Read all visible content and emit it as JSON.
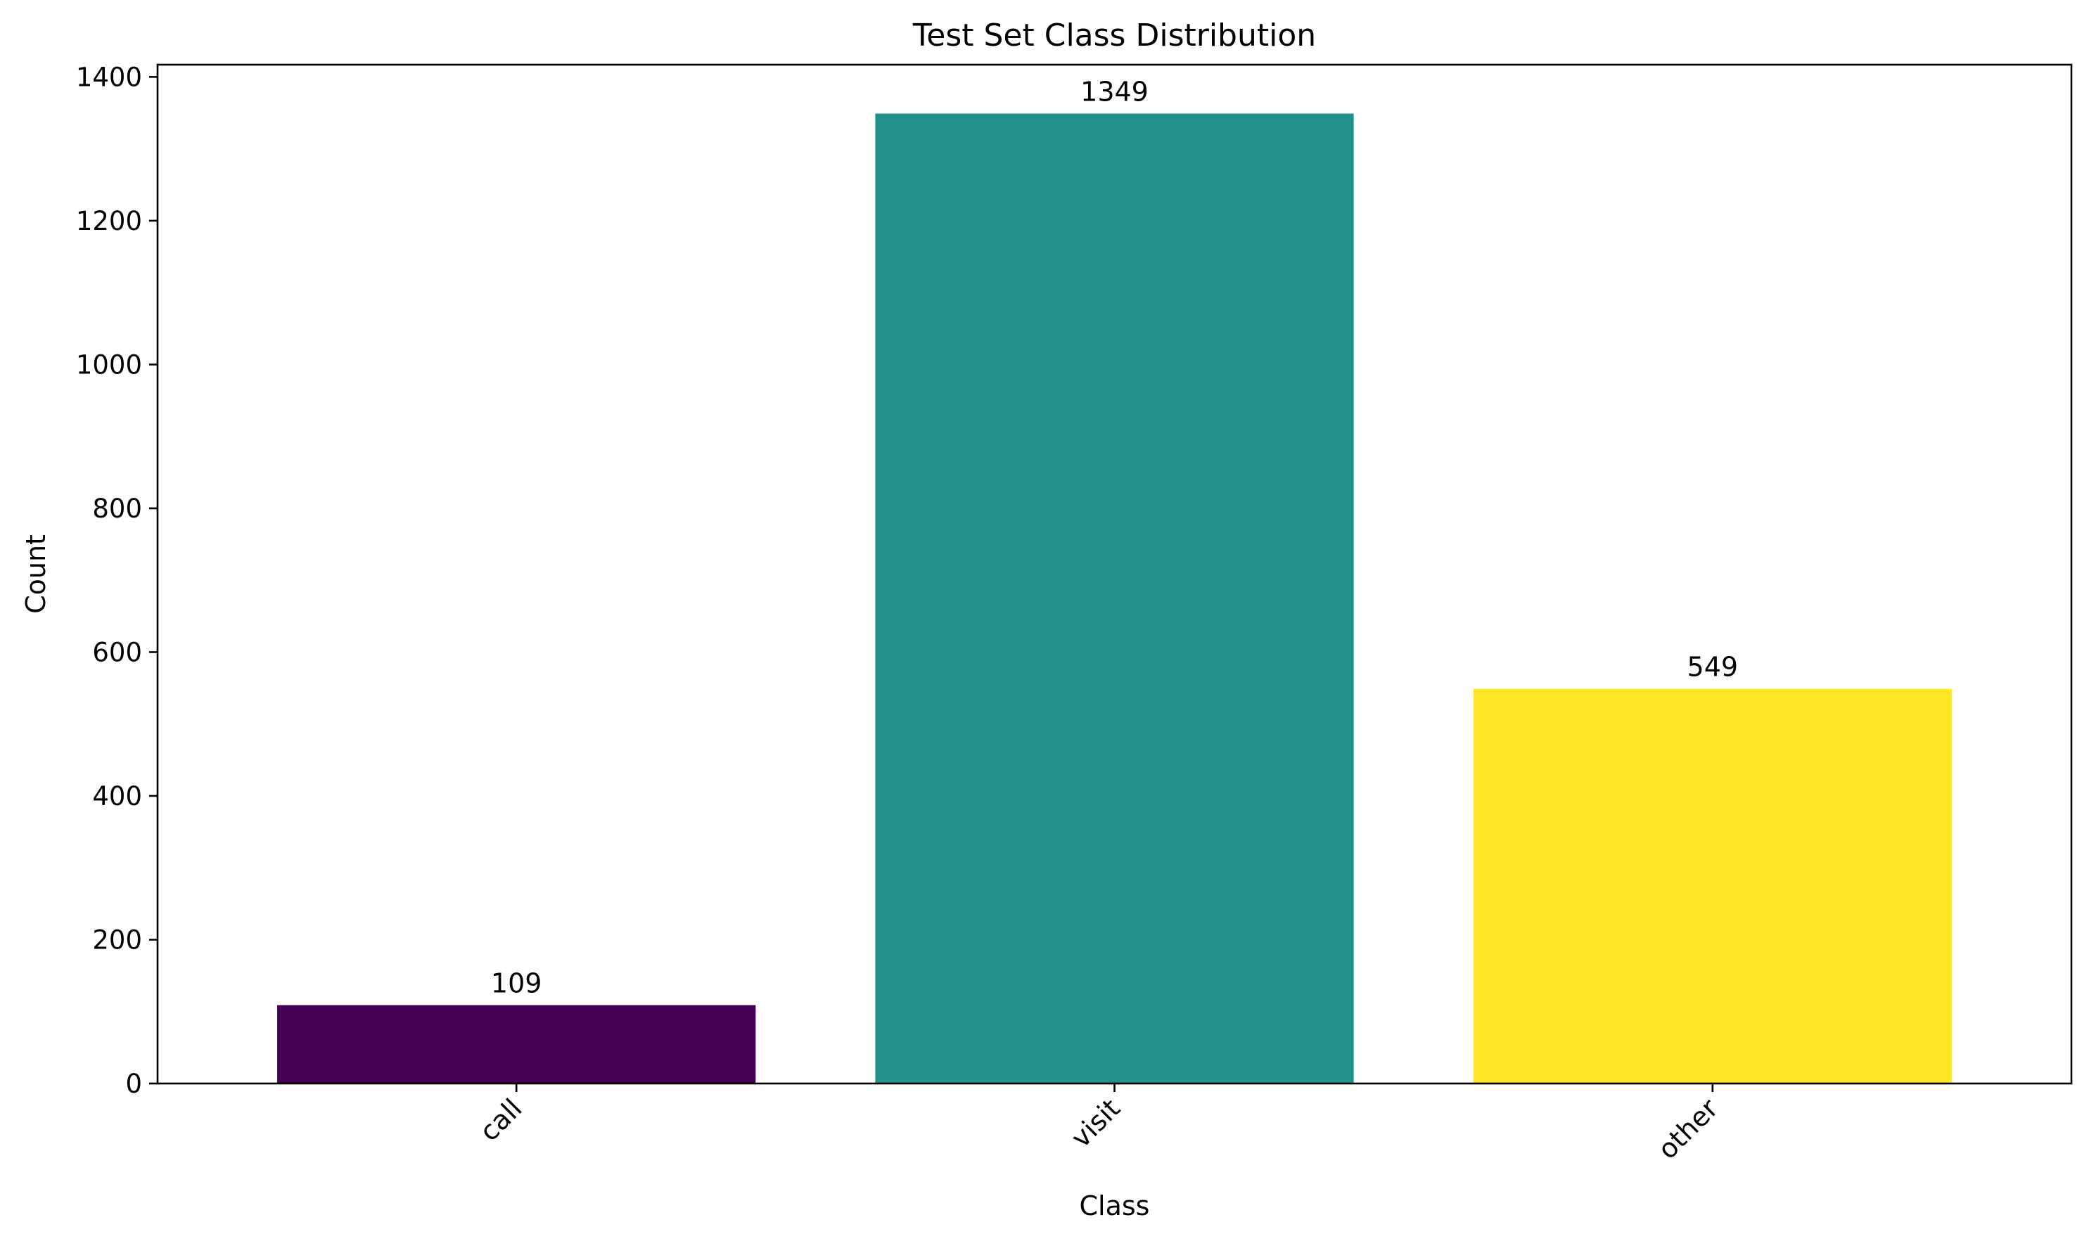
{
  "chart_data": {
    "type": "bar",
    "title": "Test Set Class Distribution",
    "xlabel": "Class",
    "ylabel": "Count",
    "categories": [
      "call",
      "visit",
      "other"
    ],
    "values": [
      109,
      1349,
      549
    ],
    "data_labels": [
      "109",
      "1349",
      "549"
    ],
    "colors": [
      "#440154",
      "#21918c",
      "#fde725"
    ],
    "ylim": [
      0,
      1417
    ],
    "yticks": [
      0,
      200,
      400,
      600,
      800,
      1000,
      1200,
      1400
    ],
    "ytick_labels": [
      "0",
      "200",
      "400",
      "600",
      "800",
      "1000",
      "1200",
      "1400"
    ],
    "xtick_rotation": "45 degrees, right-aligned",
    "grid": false,
    "legend": "none"
  }
}
